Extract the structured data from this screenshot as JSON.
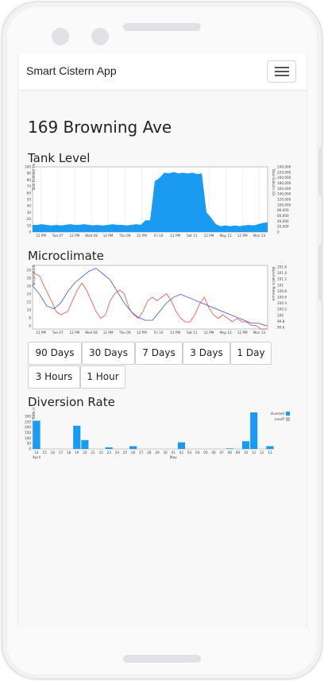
{
  "app": {
    "brand": "Smart Cistern App"
  },
  "page": {
    "title": "169 Browning Ave"
  },
  "sections": {
    "tank_level": "Tank Level",
    "microclimate": "Microclimate",
    "diversion_rate": "Diversion Rate"
  },
  "range_buttons": [
    "90 Days",
    "30 Days",
    "7 Days",
    "3 Days",
    "1 Day",
    "3 Hours",
    "1 Hour"
  ],
  "colors": {
    "fill": "#1a9af0",
    "temp": "#e8605c",
    "pressure": "#5a63d8",
    "diverted": "#1a9af0",
    "runoff": "#bbbbbb"
  },
  "chart_data": [
    {
      "type": "area",
      "title": "Tank Level",
      "ylabel": "Tank Fullness (%)",
      "y2label": "Total Gallons (G)",
      "ylim": [
        0,
        100
      ],
      "y_ticks": [
        "100",
        "90",
        "80",
        "70",
        "60",
        "50",
        "40",
        "30",
        "20",
        "10",
        "0"
      ],
      "y2_ticks": [
        "240,000",
        "220,000",
        "200,000",
        "180,000",
        "160,000",
        "140,000",
        "120,000",
        "100,000",
        "80,000",
        "60,000",
        "40,000",
        "20,000",
        "0"
      ],
      "x_ticks": [
        "12 PM",
        "Tue 07",
        "12 PM",
        "Wed 08",
        "12 PM",
        "Thu 09",
        "12 PM",
        "Fri 10",
        "12 PM",
        "Sat 11",
        "12 PM",
        "May 12",
        "12 PM",
        "Mon 13"
      ],
      "x": [
        0,
        2,
        4,
        6,
        8,
        10,
        12,
        14,
        16,
        18,
        20,
        22,
        24,
        26,
        27,
        30,
        32,
        34,
        36,
        38,
        40,
        42,
        44,
        46,
        48,
        50,
        52,
        54,
        56,
        58,
        60,
        62,
        64,
        66,
        68,
        70,
        72,
        74,
        76,
        78,
        80,
        82,
        84,
        86,
        88,
        90,
        92,
        94,
        96,
        98,
        100
      ],
      "values": [
        11,
        11,
        12,
        11,
        10,
        11,
        10,
        11,
        12,
        11,
        11,
        12,
        11,
        10,
        11,
        10,
        11,
        12,
        11,
        11,
        10,
        11,
        12,
        11,
        18,
        18,
        78,
        83,
        91,
        90,
        92,
        90,
        91,
        90,
        91,
        89,
        90,
        30,
        22,
        12,
        9,
        10,
        9,
        10,
        9,
        10,
        11,
        10,
        12,
        14,
        15
      ]
    },
    {
      "type": "line",
      "title": "Microclimate",
      "ylabel": "Temperature",
      "y2label": "Barometric Pressure",
      "ylim": [
        4,
        22
      ],
      "y_ticks": [
        "20",
        "18",
        "16",
        "14",
        "12",
        "10",
        "8",
        "6"
      ],
      "y2_ticks": [
        "101.6",
        "101.4",
        "101.2",
        "101",
        "100.8",
        "100.6",
        "100.4",
        "100.2",
        "100",
        "99.8",
        "99.6"
      ],
      "x_ticks": [
        "12 PM",
        "Tue 07",
        "12 PM",
        "Wed 08",
        "12 PM",
        "Thu 09",
        "12 PM",
        "Fri 10",
        "12 PM",
        "Sat 11",
        "12 PM",
        "May 12",
        "12 PM",
        "Mon 13"
      ],
      "series": [
        {
          "name": "",
          "x": [
            0,
            3,
            5,
            8,
            10,
            12,
            15,
            17,
            19,
            21,
            23,
            25,
            27,
            29,
            31,
            33,
            35,
            37,
            39,
            41,
            43,
            45,
            47,
            49,
            51,
            53,
            55,
            57,
            59,
            61,
            63,
            65,
            67,
            69,
            71,
            73,
            75,
            77,
            79,
            81,
            83,
            85,
            87,
            89,
            91,
            93,
            95,
            97,
            100
          ],
          "values": [
            20,
            19,
            16,
            12,
            9,
            8,
            9,
            12,
            15,
            17,
            15,
            12,
            9,
            7,
            8,
            12,
            14,
            15,
            14,
            10,
            8,
            7,
            9,
            12,
            13,
            12,
            13,
            14,
            12,
            9,
            7,
            6,
            6,
            8,
            11,
            13,
            10,
            8,
            7,
            8,
            7,
            6,
            7,
            6,
            6,
            5,
            5,
            4,
            4
          ]
        },
        {
          "name": "",
          "x": [
            0,
            3,
            6,
            9,
            12,
            15,
            18,
            21,
            24,
            27,
            30,
            33,
            36,
            39,
            42,
            45,
            48,
            51,
            54,
            57,
            60,
            63,
            66,
            69,
            72,
            75,
            78,
            81,
            84,
            87,
            90,
            93,
            96,
            100
          ],
          "values": [
            101.0,
            100.7,
            100.3,
            100.2,
            100.4,
            100.8,
            101.1,
            101.3,
            101.5,
            101.6,
            101.4,
            101.2,
            100.8,
            100.4,
            100.1,
            99.9,
            99.8,
            99.8,
            100.1,
            100.4,
            100.6,
            100.7,
            100.6,
            100.5,
            100.4,
            100.3,
            100.2,
            100.1,
            100.0,
            99.9,
            99.8,
            99.7,
            99.7,
            99.6
          ]
        }
      ]
    },
    {
      "type": "bar",
      "title": "Diversion Rate",
      "ylabel": "Rate (L)",
      "ylim": [
        0,
        330
      ],
      "y_ticks": [
        "300",
        "250",
        "200",
        "150",
        "100",
        "50",
        "0"
      ],
      "categories": [
        "14",
        "15",
        "16",
        "17",
        "18",
        "19",
        "20",
        "21",
        "22",
        "23",
        "24",
        "25",
        "26",
        "27",
        "28",
        "29",
        "30",
        "01",
        "02",
        "03",
        "04",
        "05",
        "06",
        "07",
        "08",
        "09",
        "10",
        "11",
        "12",
        "13"
      ],
      "month_labels": [
        "April",
        "May"
      ],
      "series": [
        {
          "name": "diverted",
          "values": [
            255,
            0,
            0,
            0,
            0,
            210,
            80,
            0,
            0,
            15,
            0,
            0,
            25,
            0,
            0,
            0,
            0,
            0,
            60,
            0,
            0,
            0,
            0,
            0,
            5,
            0,
            70,
            330,
            0,
            25
          ]
        },
        {
          "name": "runoff",
          "values": [
            0,
            0,
            0,
            0,
            0,
            0,
            0,
            0,
            0,
            0,
            0,
            0,
            0,
            0,
            0,
            0,
            0,
            0,
            0,
            0,
            0,
            0,
            0,
            0,
            0,
            0,
            0,
            0,
            0,
            0
          ]
        }
      ],
      "legend": [
        "diverted",
        "runoff"
      ]
    }
  ]
}
